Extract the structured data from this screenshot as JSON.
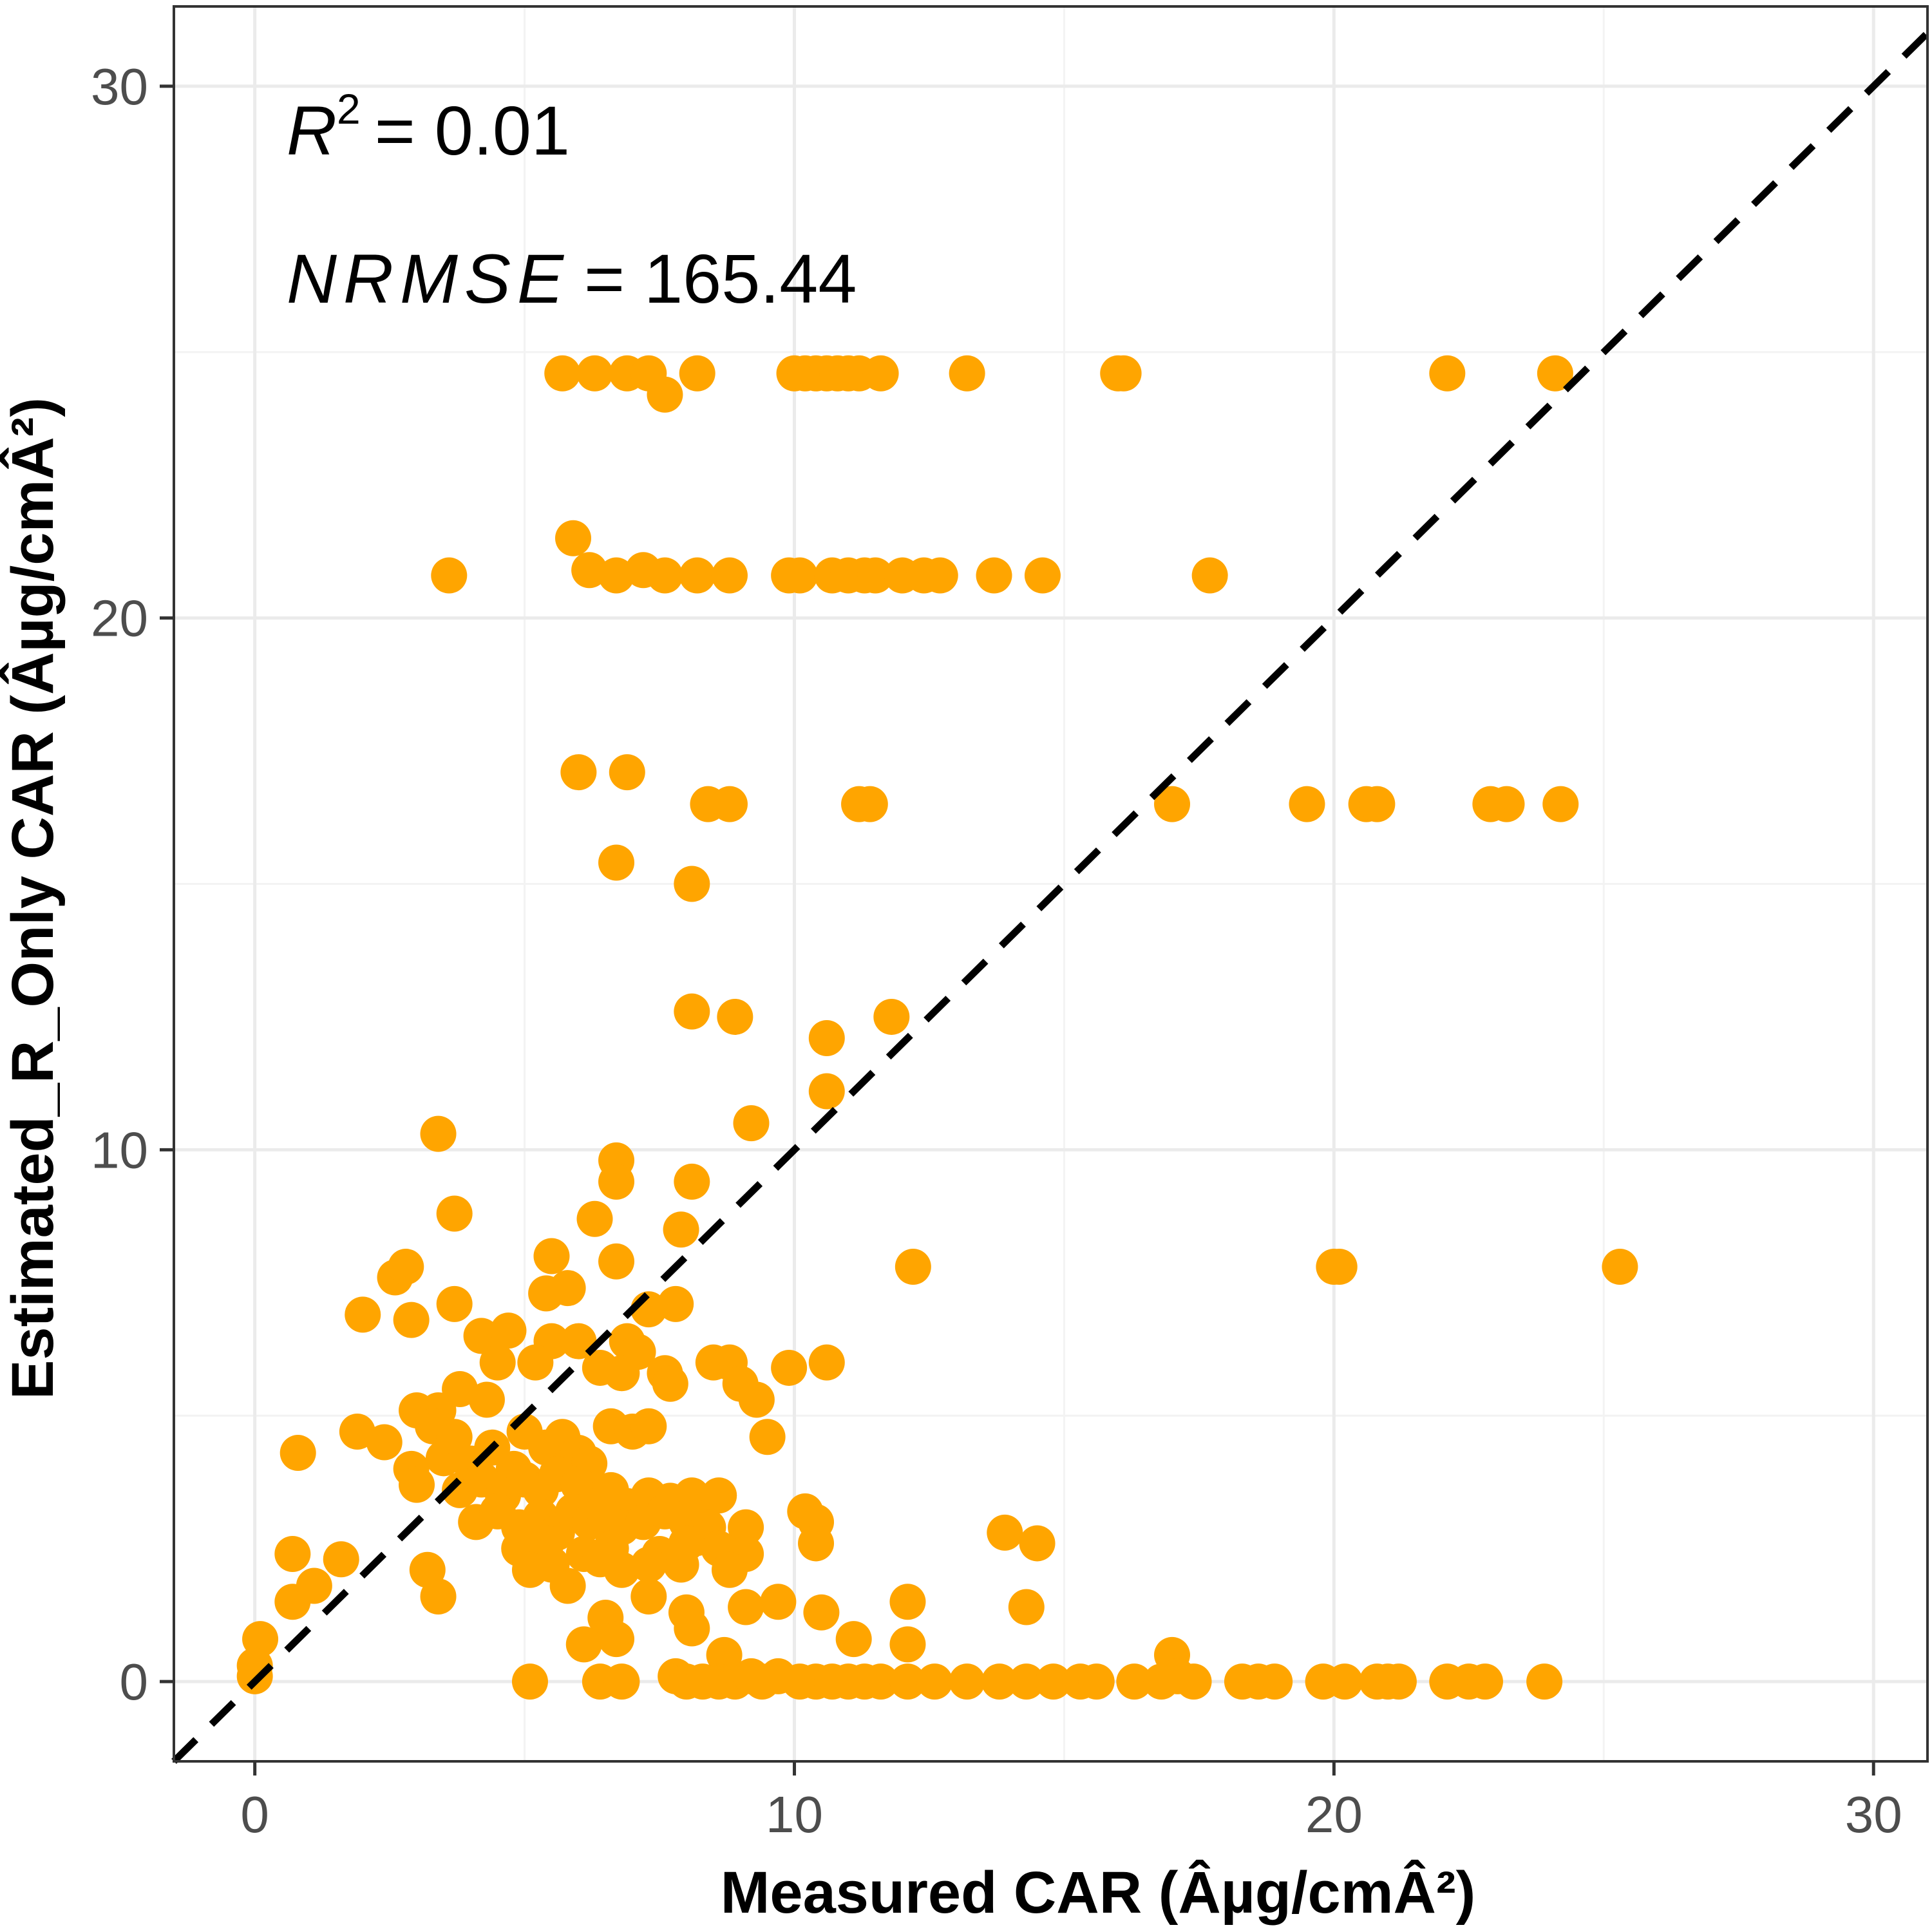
{
  "chart_data": {
    "type": "scatter",
    "xlabel": "Measured CAR (Âµg/cmÂ²)",
    "ylabel": "Estimated_R_Only CAR (Âµg/cmÂ²)",
    "xlim": [
      -1.5,
      31.0
    ],
    "ylim": [
      -1.5,
      31.5
    ],
    "xticks": [
      0,
      10,
      20,
      30
    ],
    "yticks": [
      0,
      10,
      20,
      30
    ],
    "grid": true,
    "point_color": "#FFA500",
    "reference_line": {
      "type": "identity",
      "style": "dashed",
      "color": "#000000"
    },
    "annotations": {
      "r2": {
        "symbol": "R",
        "sup": "2",
        "value": "= 0.01"
      },
      "nrmse": {
        "symbol": "NRMSE",
        "value": "= 165.44"
      }
    },
    "points": [
      [
        5.7,
        24.6
      ],
      [
        6.3,
        24.6
      ],
      [
        6.9,
        24.6
      ],
      [
        7.3,
        24.6
      ],
      [
        8.2,
        24.6
      ],
      [
        7.6,
        24.2
      ],
      [
        10.0,
        24.6
      ],
      [
        10.2,
        24.6
      ],
      [
        10.4,
        24.6
      ],
      [
        10.6,
        24.6
      ],
      [
        10.8,
        24.6
      ],
      [
        11.0,
        24.6
      ],
      [
        11.2,
        24.6
      ],
      [
        11.6,
        24.6
      ],
      [
        13.2,
        24.6
      ],
      [
        16.0,
        24.6
      ],
      [
        16.1,
        24.6
      ],
      [
        22.1,
        24.6
      ],
      [
        24.1,
        24.6
      ],
      [
        3.6,
        20.8
      ],
      [
        5.9,
        21.5
      ],
      [
        6.2,
        20.9
      ],
      [
        6.7,
        20.8
      ],
      [
        7.2,
        20.9
      ],
      [
        7.6,
        20.8
      ],
      [
        8.2,
        20.8
      ],
      [
        8.8,
        20.8
      ],
      [
        9.9,
        20.8
      ],
      [
        10.1,
        20.8
      ],
      [
        10.7,
        20.8
      ],
      [
        11.0,
        20.8
      ],
      [
        11.3,
        20.8
      ],
      [
        11.5,
        20.8
      ],
      [
        12.0,
        20.8
      ],
      [
        12.4,
        20.8
      ],
      [
        12.7,
        20.8
      ],
      [
        13.7,
        20.8
      ],
      [
        14.6,
        20.8
      ],
      [
        17.7,
        20.8
      ],
      [
        6.0,
        17.1
      ],
      [
        6.9,
        17.1
      ],
      [
        8.4,
        16.5
      ],
      [
        8.8,
        16.5
      ],
      [
        11.2,
        16.5
      ],
      [
        11.4,
        16.5
      ],
      [
        17.0,
        16.5
      ],
      [
        19.5,
        16.5
      ],
      [
        20.6,
        16.5
      ],
      [
        20.8,
        16.5
      ],
      [
        22.9,
        16.5
      ],
      [
        23.2,
        16.5
      ],
      [
        24.2,
        16.5
      ],
      [
        6.7,
        15.4
      ],
      [
        8.1,
        15.0
      ],
      [
        8.1,
        12.6
      ],
      [
        8.9,
        12.5
      ],
      [
        10.6,
        12.1
      ],
      [
        11.8,
        12.5
      ],
      [
        10.6,
        11.1
      ],
      [
        9.2,
        10.5
      ],
      [
        3.4,
        10.3
      ],
      [
        3.7,
        8.8
      ],
      [
        6.7,
        9.8
      ],
      [
        6.7,
        9.4
      ],
      [
        8.1,
        9.4
      ],
      [
        6.3,
        8.7
      ],
      [
        7.9,
        8.5
      ],
      [
        5.5,
        8.0
      ],
      [
        6.7,
        7.9
      ],
      [
        12.2,
        7.8
      ],
      [
        20.0,
        7.8
      ],
      [
        20.1,
        7.8
      ],
      [
        25.3,
        7.8
      ],
      [
        2.6,
        7.6
      ],
      [
        2.8,
        7.8
      ],
      [
        5.4,
        7.3
      ],
      [
        5.8,
        7.4
      ],
      [
        3.7,
        7.1
      ],
      [
        7.3,
        7.0
      ],
      [
        7.8,
        7.1
      ],
      [
        2.0,
        6.9
      ],
      [
        2.9,
        6.8
      ],
      [
        4.2,
        6.5
      ],
      [
        4.7,
        6.6
      ],
      [
        5.5,
        6.4
      ],
      [
        6.0,
        6.4
      ],
      [
        6.9,
        6.4
      ],
      [
        7.1,
        6.2
      ],
      [
        4.5,
        6.0
      ],
      [
        5.2,
        6.0
      ],
      [
        6.4,
        5.9
      ],
      [
        6.8,
        5.8
      ],
      [
        7.6,
        5.8
      ],
      [
        7.7,
        5.6
      ],
      [
        8.5,
        6.0
      ],
      [
        8.8,
        6.0
      ],
      [
        9.9,
        5.9
      ],
      [
        10.6,
        6.0
      ],
      [
        9.0,
        5.6
      ],
      [
        9.3,
        5.3
      ],
      [
        9.5,
        4.6
      ],
      [
        3.0,
        5.1
      ],
      [
        3.4,
        5.1
      ],
      [
        3.8,
        5.5
      ],
      [
        4.3,
        5.3
      ],
      [
        3.3,
        4.8
      ],
      [
        1.9,
        4.7
      ],
      [
        2.4,
        4.5
      ],
      [
        0.8,
        4.3
      ],
      [
        2.9,
        4.0
      ],
      [
        3.5,
        4.2
      ],
      [
        3.7,
        4.6
      ],
      [
        4.0,
        4.1
      ],
      [
        4.4,
        4.4
      ],
      [
        4.8,
        4.0
      ],
      [
        5.0,
        4.7
      ],
      [
        5.4,
        4.4
      ],
      [
        5.7,
        4.6
      ],
      [
        6.0,
        4.3
      ],
      [
        6.2,
        4.1
      ],
      [
        6.6,
        4.8
      ],
      [
        7.0,
        4.7
      ],
      [
        7.3,
        4.8
      ],
      [
        3.0,
        3.7
      ],
      [
        3.8,
        3.6
      ],
      [
        4.2,
        3.8
      ],
      [
        4.6,
        3.5
      ],
      [
        5.0,
        3.8
      ],
      [
        5.3,
        3.6
      ],
      [
        5.6,
        3.9
      ],
      [
        6.0,
        3.7
      ],
      [
        6.3,
        3.4
      ],
      [
        6.6,
        3.6
      ],
      [
        6.9,
        3.3
      ],
      [
        7.3,
        3.5
      ],
      [
        7.7,
        3.4
      ],
      [
        8.1,
        3.5
      ],
      [
        8.3,
        3.3
      ],
      [
        8.6,
        3.5
      ],
      [
        4.1,
        3.0
      ],
      [
        4.5,
        3.2
      ],
      [
        4.9,
        2.9
      ],
      [
        5.3,
        3.1
      ],
      [
        5.6,
        2.8
      ],
      [
        5.9,
        3.2
      ],
      [
        6.2,
        3.0
      ],
      [
        6.5,
        3.1
      ],
      [
        6.8,
        2.9
      ],
      [
        7.2,
        3.0
      ],
      [
        7.6,
        3.2
      ],
      [
        8.0,
        3.0
      ],
      [
        8.4,
        2.9
      ],
      [
        9.1,
        2.9
      ],
      [
        10.2,
        3.2
      ],
      [
        10.4,
        3.0
      ],
      [
        13.9,
        2.8
      ],
      [
        14.5,
        2.6
      ],
      [
        4.9,
        2.5
      ],
      [
        5.4,
        2.6
      ],
      [
        6.1,
        2.4
      ],
      [
        6.6,
        2.5
      ],
      [
        7.5,
        2.4
      ],
      [
        7.9,
        2.2
      ],
      [
        8.2,
        2.7
      ],
      [
        8.6,
        2.5
      ],
      [
        9.1,
        2.4
      ],
      [
        10.4,
        2.6
      ],
      [
        0.7,
        2.4
      ],
      [
        1.6,
        2.3
      ],
      [
        3.2,
        2.1
      ],
      [
        5.1,
        2.1
      ],
      [
        5.5,
        2.2
      ],
      [
        6.4,
        2.3
      ],
      [
        6.8,
        2.1
      ],
      [
        7.3,
        2.2
      ],
      [
        8.0,
        2.6
      ],
      [
        8.8,
        2.1
      ],
      [
        3.4,
        1.6
      ],
      [
        0.7,
        1.5
      ],
      [
        1.1,
        1.8
      ],
      [
        5.8,
        1.8
      ],
      [
        7.3,
        1.6
      ],
      [
        8.0,
        1.3
      ],
      [
        9.1,
        1.4
      ],
      [
        9.7,
        1.5
      ],
      [
        10.5,
        1.3
      ],
      [
        12.1,
        1.5
      ],
      [
        14.3,
        1.4
      ],
      [
        6.5,
        1.2
      ],
      [
        8.1,
        1.0
      ],
      [
        11.1,
        0.8
      ],
      [
        12.1,
        0.7
      ],
      [
        0.1,
        0.8
      ],
      [
        0.0,
        0.3
      ],
      [
        0.0,
        0.1
      ],
      [
        6.1,
        0.7
      ],
      [
        6.7,
        0.8
      ],
      [
        8.7,
        0.5
      ],
      [
        17.0,
        0.5
      ],
      [
        5.1,
        0.0
      ],
      [
        6.4,
        0.0
      ],
      [
        6.8,
        0.0
      ],
      [
        7.8,
        0.1
      ],
      [
        8.0,
        0.0
      ],
      [
        8.3,
        0.0
      ],
      [
        8.6,
        0.0
      ],
      [
        8.9,
        0.0
      ],
      [
        9.2,
        0.1
      ],
      [
        9.4,
        0.0
      ],
      [
        9.7,
        0.1
      ],
      [
        10.1,
        0.0
      ],
      [
        10.4,
        0.0
      ],
      [
        10.7,
        0.0
      ],
      [
        11.0,
        0.0
      ],
      [
        11.3,
        0.0
      ],
      [
        11.6,
        0.0
      ],
      [
        12.1,
        0.0
      ],
      [
        12.6,
        0.0
      ],
      [
        13.2,
        0.0
      ],
      [
        13.8,
        0.0
      ],
      [
        14.3,
        0.0
      ],
      [
        14.8,
        0.0
      ],
      [
        15.3,
        0.0
      ],
      [
        15.6,
        0.0
      ],
      [
        16.3,
        0.0
      ],
      [
        16.8,
        0.0
      ],
      [
        17.1,
        0.1
      ],
      [
        17.4,
        0.0
      ],
      [
        18.3,
        0.0
      ],
      [
        18.6,
        0.0
      ],
      [
        18.9,
        0.0
      ],
      [
        19.8,
        0.0
      ],
      [
        20.2,
        0.0
      ],
      [
        20.8,
        0.0
      ],
      [
        21.0,
        0.0
      ],
      [
        21.2,
        0.0
      ],
      [
        22.1,
        0.0
      ],
      [
        22.5,
        0.0
      ],
      [
        22.8,
        0.0
      ],
      [
        23.9,
        0.0
      ]
    ]
  }
}
